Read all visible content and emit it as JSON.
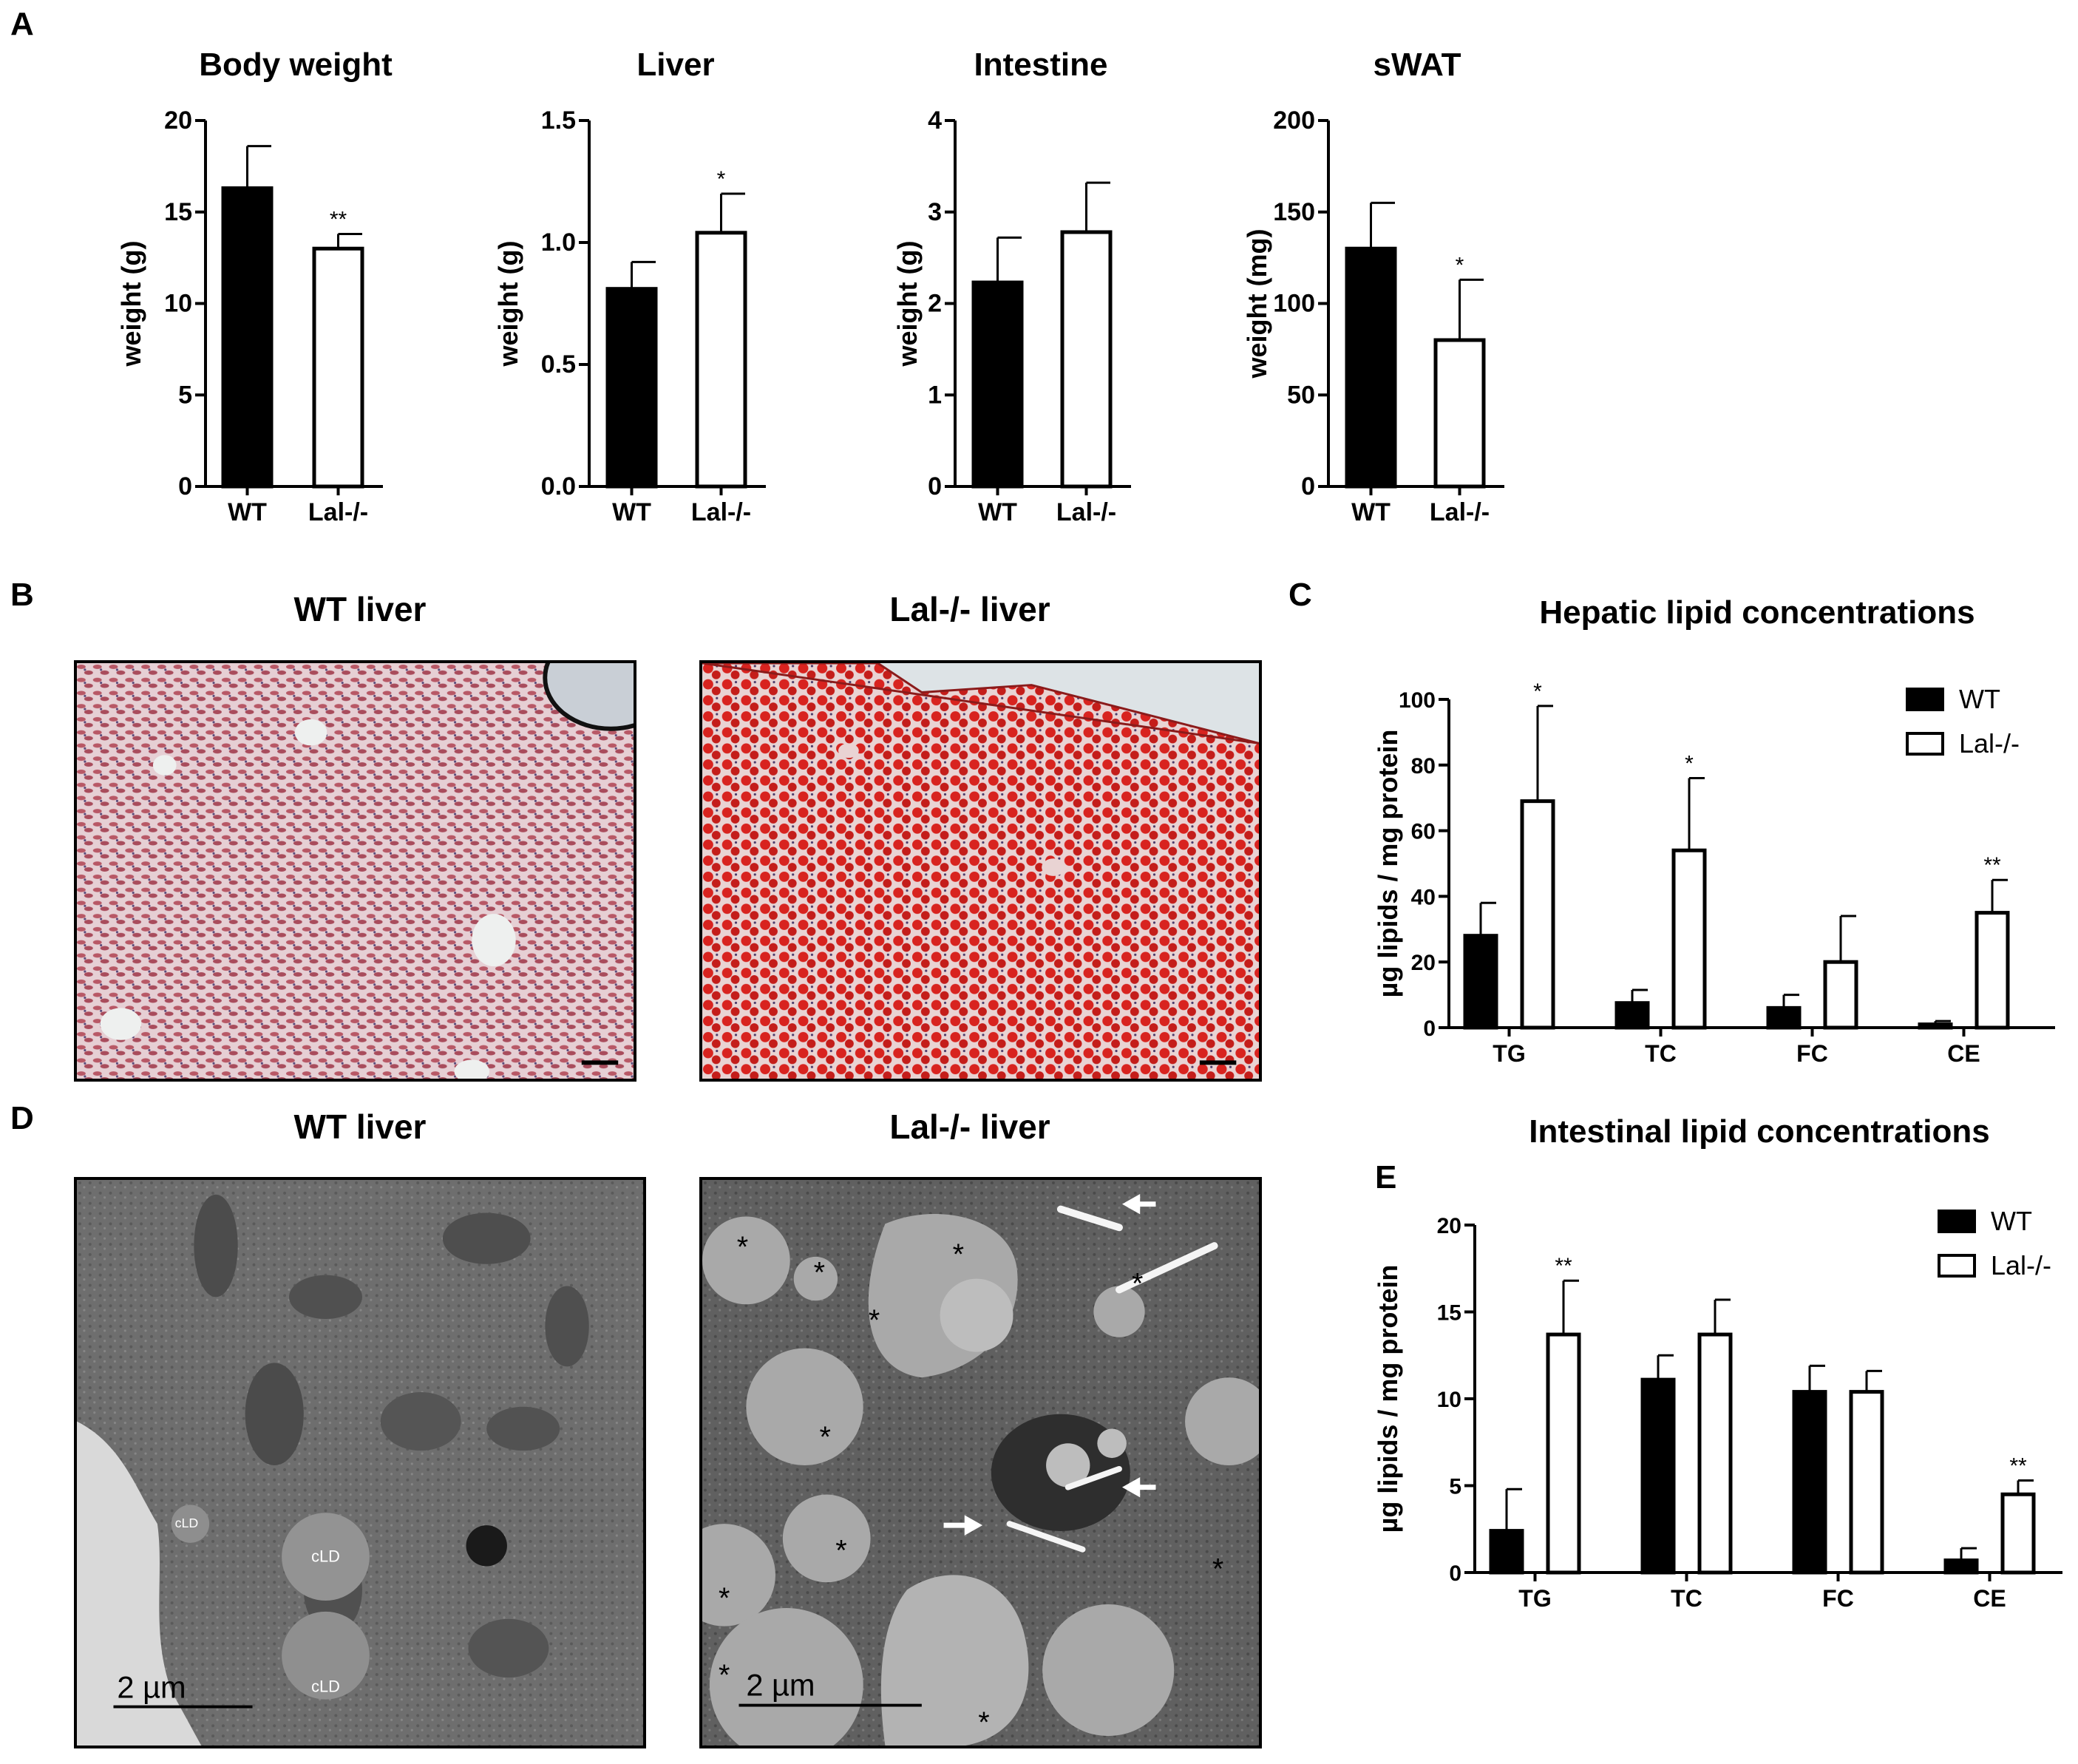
{
  "panel_letters": {
    "a": "A",
    "b": "B",
    "c": "C",
    "d": "D",
    "e": "E"
  },
  "images": {
    "b_wt_title": "WT liver",
    "b_ko_title": "Lal-/- liver",
    "d_wt_title": "WT liver",
    "d_ko_title": "Lal-/- liver",
    "d_wt_scale": "2  µm",
    "d_ko_scale": "2  µm",
    "d_wt_labels": [
      "cLD",
      "cLD",
      "cLD"
    ],
    "d_ko_star": "*",
    "colors": {
      "oil_red": "#d8231f",
      "tissue_pink": "#b85866",
      "em_gray": "#6e6e6e",
      "em_droplet": "#a9a9a9"
    }
  },
  "chart_data": [
    {
      "id": "body-weight",
      "type": "bar",
      "title": "Body weight",
      "ylabel": "weight (g)",
      "categories": [
        "WT",
        "Lal-/-"
      ],
      "values": [
        16.3,
        13.0
      ],
      "errors": [
        2.3,
        0.8
      ],
      "sig": [
        "",
        "**"
      ],
      "fills": [
        "#000000",
        "#ffffff"
      ],
      "ylim": [
        0,
        20
      ],
      "yticks": [
        0,
        5,
        10,
        15,
        20
      ],
      "ytick_labels": [
        "0",
        "5",
        "10",
        "15",
        "20"
      ]
    },
    {
      "id": "liver-weight",
      "type": "bar",
      "title": "Liver",
      "ylabel": "weight (g)",
      "categories": [
        "WT",
        "Lal-/-"
      ],
      "values": [
        0.81,
        1.04
      ],
      "errors": [
        0.11,
        0.16
      ],
      "sig": [
        "",
        "*"
      ],
      "fills": [
        "#000000",
        "#ffffff"
      ],
      "ylim": [
        0,
        1.5
      ],
      "yticks": [
        0,
        0.5,
        1.0,
        1.5
      ],
      "ytick_labels": [
        "0.0",
        "0.5",
        "1.0",
        "1.5"
      ]
    },
    {
      "id": "intestine-weight",
      "type": "bar",
      "title": "Intestine",
      "ylabel": "weight (g)",
      "categories": [
        "WT",
        "Lal-/-"
      ],
      "values": [
        2.23,
        2.78
      ],
      "errors": [
        0.49,
        0.54
      ],
      "sig": [
        "",
        ""
      ],
      "fills": [
        "#000000",
        "#ffffff"
      ],
      "ylim": [
        0,
        4
      ],
      "yticks": [
        0,
        1,
        2,
        3,
        4
      ],
      "ytick_labels": [
        "0",
        "1",
        "2",
        "3",
        "4"
      ]
    },
    {
      "id": "swat-weight",
      "type": "bar",
      "title": "sWAT",
      "ylabel": "weight (mg)",
      "categories": [
        "WT",
        "Lal-/-"
      ],
      "values": [
        130,
        80
      ],
      "errors": [
        25,
        33
      ],
      "sig": [
        "",
        "*"
      ],
      "fills": [
        "#000000",
        "#ffffff"
      ],
      "ylim": [
        0,
        200
      ],
      "yticks": [
        0,
        50,
        100,
        150,
        200
      ],
      "ytick_labels": [
        "0",
        "50",
        "100",
        "150",
        "200"
      ]
    },
    {
      "id": "hepatic-lipids",
      "type": "bar",
      "title": "Hepatic lipid concentrations",
      "ylabel": "µg lipids / mg protein",
      "categories": [
        "TG",
        "TC",
        "FC",
        "CE"
      ],
      "series": [
        {
          "name": "WT",
          "fill": "#000000",
          "values": [
            28,
            7.5,
            6,
            1
          ],
          "errors": [
            10,
            4,
            4,
            1
          ],
          "sig": [
            "",
            "",
            "",
            ""
          ]
        },
        {
          "name": "Lal-/-",
          "fill": "#ffffff",
          "values": [
            69,
            54,
            20,
            35
          ],
          "errors": [
            29,
            22,
            14,
            10
          ],
          "sig": [
            "*",
            "*",
            "",
            "**"
          ]
        }
      ],
      "ylim": [
        0,
        100
      ],
      "yticks": [
        0,
        20,
        40,
        60,
        80,
        100
      ],
      "ytick_labels": [
        "0",
        "20",
        "40",
        "60",
        "80",
        "100"
      ],
      "legend": "top-right"
    },
    {
      "id": "intestinal-lipids",
      "type": "bar",
      "title": "Intestinal lipid concentrations",
      "ylabel": "µg lipids / mg protein",
      "categories": [
        "TG",
        "TC",
        "FC",
        "CE"
      ],
      "series": [
        {
          "name": "WT",
          "fill": "#000000",
          "values": [
            2.4,
            11.1,
            10.4,
            0.7
          ],
          "errors": [
            2.4,
            1.4,
            1.5,
            0.7
          ],
          "sig": [
            "",
            "",
            "",
            ""
          ]
        },
        {
          "name": "Lal-/-",
          "fill": "#ffffff",
          "values": [
            13.7,
            13.7,
            10.4,
            4.5
          ],
          "errors": [
            3.1,
            2.0,
            1.2,
            0.8
          ],
          "sig": [
            "**",
            "",
            "",
            "**"
          ]
        }
      ],
      "ylim": [
        0,
        20
      ],
      "yticks": [
        0,
        5,
        10,
        15,
        20
      ],
      "ytick_labels": [
        "0",
        "5",
        "10",
        "15",
        "20"
      ],
      "legend": "top-right"
    }
  ]
}
